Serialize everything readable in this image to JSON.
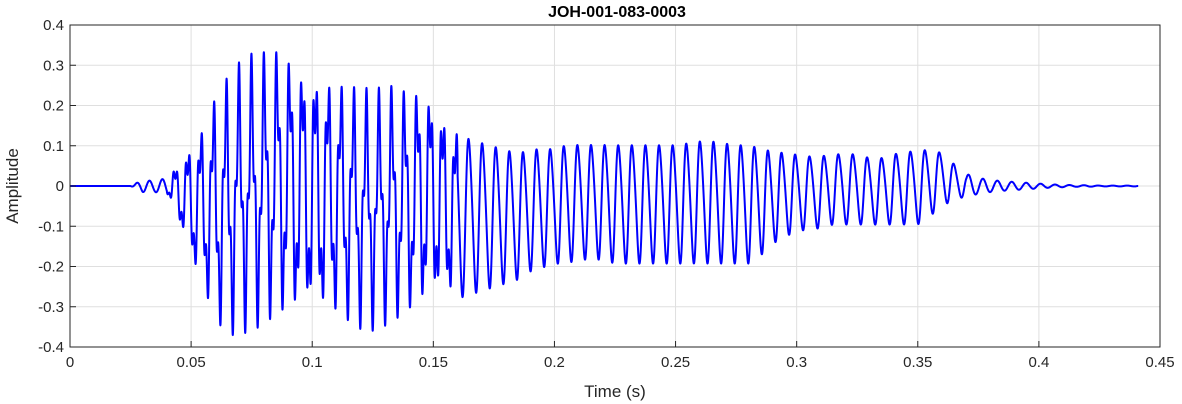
{
  "chart_data": {
    "type": "line",
    "title": "JOH-001-083-0003",
    "xlabel": "Time (s)",
    "ylabel": "Amplitude",
    "xlim": [
      0,
      0.45
    ],
    "ylim": [
      -0.4,
      0.4
    ],
    "grid": true,
    "x_ticks": [
      "0",
      "0.05",
      "0.1",
      "0.15",
      "0.2",
      "0.25",
      "0.3",
      "0.35",
      "0.4",
      "0.45"
    ],
    "y_ticks": [
      "-0.4",
      "-0.3",
      "-0.2",
      "-0.1",
      "0",
      "0.1",
      "0.2",
      "0.3",
      "0.4"
    ],
    "line_color": "#0000ff",
    "series": [
      {
        "x": [
          0,
          0.025,
          0.03,
          0.035,
          0.04,
          0.045,
          0.05,
          0.055,
          0.06,
          0.065,
          0.07,
          0.075,
          0.08,
          0.085,
          0.09,
          0.095,
          0.1,
          0.105,
          0.11,
          0.115,
          0.12,
          0.125,
          0.13,
          0.135,
          0.14,
          0.145,
          0.15,
          0.155,
          0.16,
          0.165,
          0.17,
          0.175,
          0.18,
          0.185,
          0.19,
          0.195,
          0.2,
          0.205,
          0.21,
          0.215,
          0.22,
          0.225,
          0.23,
          0.235,
          0.24,
          0.245,
          0.25,
          0.255,
          0.26,
          0.265,
          0.27,
          0.275,
          0.28,
          0.285,
          0.29,
          0.295,
          0.3,
          0.305,
          0.31,
          0.315,
          0.32,
          0.325,
          0.33,
          0.335,
          0.34,
          0.345,
          0.35,
          0.355,
          0.36,
          0.365,
          0.37,
          0.375,
          0.38,
          0.385,
          0.39,
          0.395,
          0.4,
          0.405,
          0.41,
          0.415,
          0.42,
          0.425,
          0.43,
          0.435,
          0.44,
          0.441
        ],
        "upper": [
          0,
          0,
          0.015,
          0.012,
          0.02,
          0.07,
          0.12,
          0.17,
          0.24,
          0.28,
          0.31,
          0.33,
          0.34,
          0.355,
          0.35,
          0.33,
          0.32,
          0.3,
          0.28,
          0.26,
          0.25,
          0.24,
          0.25,
          0.26,
          0.25,
          0.27,
          0.25,
          0.2,
          0.16,
          0.14,
          0.13,
          0.12,
          0.11,
          0.1,
          0.11,
          0.11,
          0.11,
          0.12,
          0.12,
          0.12,
          0.12,
          0.12,
          0.12,
          0.12,
          0.12,
          0.12,
          0.12,
          0.125,
          0.13,
          0.13,
          0.125,
          0.12,
          0.12,
          0.11,
          0.1,
          0.095,
          0.09,
          0.085,
          0.085,
          0.09,
          0.09,
          0.09,
          0.08,
          0.08,
          0.09,
          0.095,
          0.1,
          0.1,
          0.09,
          0.06,
          0.03,
          0.02,
          0.015,
          0.012,
          0.01,
          0.008,
          0.006,
          0.004,
          0.003,
          0.002,
          0.002,
          0.001,
          0.001,
          0.001,
          0.001,
          0
        ],
        "lower": [
          0,
          0,
          -0.015,
          -0.015,
          -0.02,
          -0.1,
          -0.2,
          -0.28,
          -0.35,
          -0.38,
          -0.37,
          -0.36,
          -0.35,
          -0.34,
          -0.34,
          -0.34,
          -0.34,
          -0.34,
          -0.34,
          -0.35,
          -0.36,
          -0.36,
          -0.35,
          -0.34,
          -0.33,
          -0.32,
          -0.3,
          -0.3,
          -0.29,
          -0.28,
          -0.27,
          -0.26,
          -0.25,
          -0.24,
          -0.22,
          -0.21,
          -0.2,
          -0.2,
          -0.19,
          -0.19,
          -0.19,
          -0.2,
          -0.2,
          -0.2,
          -0.2,
          -0.2,
          -0.2,
          -0.2,
          -0.2,
          -0.2,
          -0.2,
          -0.2,
          -0.2,
          -0.18,
          -0.15,
          -0.13,
          -0.12,
          -0.11,
          -0.11,
          -0.1,
          -0.1,
          -0.1,
          -0.1,
          -0.1,
          -0.1,
          -0.1,
          -0.1,
          -0.08,
          -0.05,
          -0.04,
          -0.025,
          -0.02,
          -0.015,
          -0.012,
          -0.01,
          -0.008,
          -0.006,
          -0.004,
          -0.003,
          -0.002,
          -0.002,
          -0.001,
          -0.001,
          -0.001,
          -0.001,
          0
        ]
      }
    ]
  }
}
